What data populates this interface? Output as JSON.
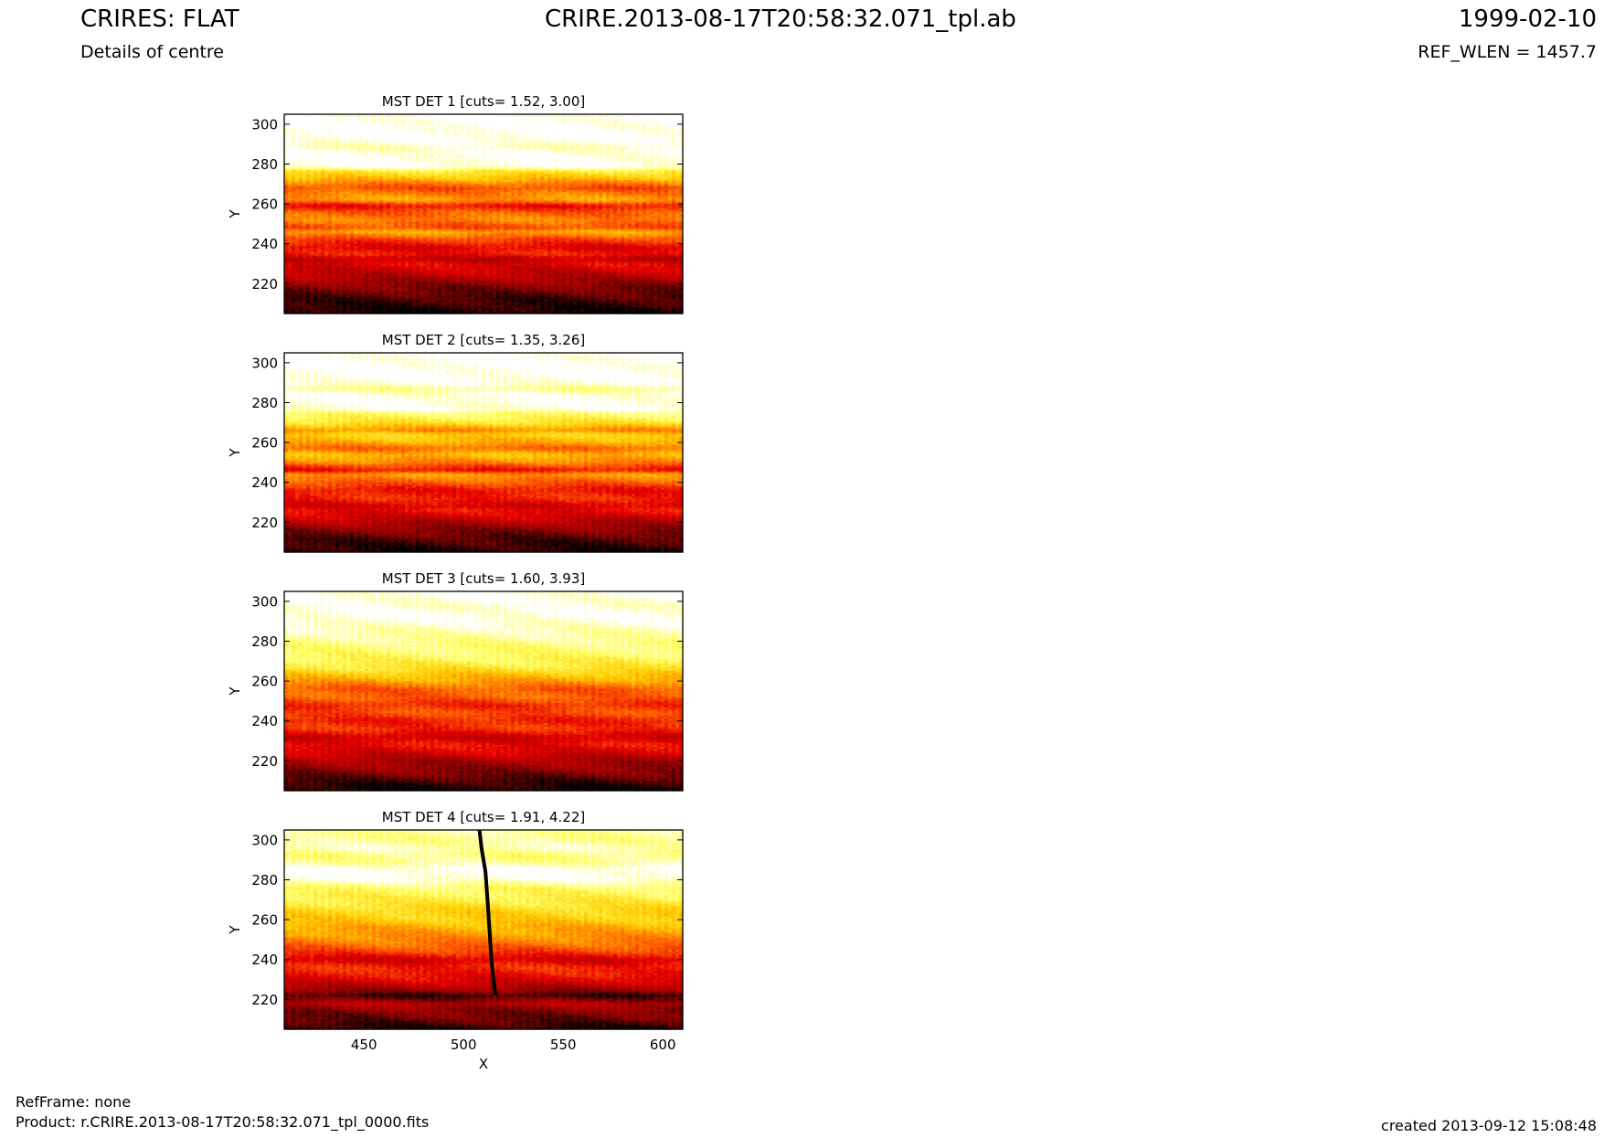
{
  "header": {
    "title": "CRIRES: FLAT",
    "subtitle": "Details of centre",
    "filename": "CRIRE.2013-08-17T20:58:32.071_tpl.ab",
    "date": "1999-02-10",
    "ref_wlen": "REF_WLEN = 1457.7"
  },
  "footer": {
    "refframe": "RefFrame: none",
    "product": "Product: r.CRIRE.2013-08-17T20:58:32.071_tpl_0000.fits",
    "created": "created 2013-09-12 15:08:48"
  },
  "colors": {
    "colormap": "hot",
    "stops": [
      "#000000",
      "#8b0000",
      "#e60000",
      "#ff6600",
      "#ffcc00",
      "#ffff66",
      "#ffffff"
    ]
  },
  "chart_data": [
    {
      "type": "heatmap",
      "title": "MST DET 1 [cuts= 1.52, 3.00]",
      "xlabel": "",
      "ylabel": "Y",
      "xlim": [
        410,
        610
      ],
      "ylim": [
        205,
        305
      ],
      "xticks": [],
      "yticks": [
        220,
        240,
        260,
        280,
        300
      ],
      "profile": [
        [
          205,
          0.02
        ],
        [
          212,
          0.08
        ],
        [
          218,
          0.15
        ],
        [
          222,
          0.22
        ],
        [
          226,
          0.28
        ],
        [
          230,
          0.33
        ],
        [
          232,
          0.25
        ],
        [
          235,
          0.38
        ],
        [
          238,
          0.32
        ],
        [
          242,
          0.44
        ],
        [
          246,
          0.62
        ],
        [
          248,
          0.45
        ],
        [
          252,
          0.55
        ],
        [
          256,
          0.48
        ],
        [
          259,
          0.35
        ],
        [
          262,
          0.6
        ],
        [
          266,
          0.52
        ],
        [
          268,
          0.45
        ],
        [
          272,
          0.62
        ],
        [
          275,
          0.72
        ],
        [
          277,
          0.8
        ],
        [
          278,
          0.97
        ],
        [
          282,
          0.99
        ],
        [
          286,
          0.98
        ],
        [
          288,
          0.93
        ],
        [
          290,
          0.96
        ],
        [
          292,
          1.0
        ],
        [
          305,
          1.0
        ]
      ],
      "features": []
    },
    {
      "type": "heatmap",
      "title": "MST DET 2 [cuts= 1.35, 3.26]",
      "xlabel": "",
      "ylabel": "Y",
      "xlim": [
        410,
        610
      ],
      "ylim": [
        205,
        305
      ],
      "xticks": [],
      "yticks": [
        220,
        240,
        260,
        280,
        300
      ],
      "profile": [
        [
          205,
          0.03
        ],
        [
          212,
          0.1
        ],
        [
          218,
          0.2
        ],
        [
          222,
          0.28
        ],
        [
          226,
          0.36
        ],
        [
          228,
          0.3
        ],
        [
          232,
          0.4
        ],
        [
          236,
          0.36
        ],
        [
          240,
          0.48
        ],
        [
          244,
          0.6
        ],
        [
          246,
          0.35
        ],
        [
          250,
          0.55
        ],
        [
          254,
          0.65
        ],
        [
          257,
          0.5
        ],
        [
          260,
          0.62
        ],
        [
          264,
          0.7
        ],
        [
          266,
          0.55
        ],
        [
          270,
          0.75
        ],
        [
          273,
          0.82
        ],
        [
          275,
          0.86
        ],
        [
          276,
          0.96
        ],
        [
          280,
          0.99
        ],
        [
          284,
          0.97
        ],
        [
          287,
          0.88
        ],
        [
          290,
          0.98
        ],
        [
          294,
          1.0
        ],
        [
          305,
          1.0
        ]
      ],
      "features": []
    },
    {
      "type": "heatmap",
      "title": "MST DET 3 [cuts= 1.60, 3.93]",
      "xlabel": "",
      "ylabel": "Y",
      "xlim": [
        410,
        610
      ],
      "ylim": [
        205,
        305
      ],
      "xticks": [],
      "yticks": [
        220,
        240,
        260,
        280,
        300
      ],
      "profile": [
        [
          205,
          0.02
        ],
        [
          208,
          0.05
        ],
        [
          212,
          0.12
        ],
        [
          216,
          0.18
        ],
        [
          220,
          0.22
        ],
        [
          224,
          0.3
        ],
        [
          228,
          0.36
        ],
        [
          232,
          0.28
        ],
        [
          236,
          0.42
        ],
        [
          240,
          0.38
        ],
        [
          244,
          0.46
        ],
        [
          248,
          0.4
        ],
        [
          252,
          0.5
        ],
        [
          256,
          0.48
        ],
        [
          260,
          0.6
        ],
        [
          263,
          0.66
        ],
        [
          266,
          0.74
        ],
        [
          270,
          0.8
        ],
        [
          274,
          0.84
        ],
        [
          278,
          0.86
        ],
        [
          282,
          0.9
        ],
        [
          286,
          0.93
        ],
        [
          290,
          0.97
        ],
        [
          294,
          0.99
        ],
        [
          297,
          0.96
        ],
        [
          300,
          0.97
        ],
        [
          305,
          0.99
        ]
      ],
      "features": []
    },
    {
      "type": "heatmap",
      "title": "MST DET 4 [cuts= 1.91, 4.22]",
      "xlabel": "X",
      "ylabel": "Y",
      "xlim": [
        410,
        610
      ],
      "ylim": [
        205,
        305
      ],
      "xticks": [
        450,
        500,
        550,
        600
      ],
      "yticks": [
        220,
        240,
        260,
        280,
        300
      ],
      "profile": [
        [
          205,
          0.04
        ],
        [
          210,
          0.12
        ],
        [
          214,
          0.16
        ],
        [
          218,
          0.24
        ],
        [
          222,
          0.06
        ],
        [
          224,
          0.18
        ],
        [
          228,
          0.28
        ],
        [
          232,
          0.36
        ],
        [
          236,
          0.4
        ],
        [
          240,
          0.3
        ],
        [
          244,
          0.44
        ],
        [
          248,
          0.52
        ],
        [
          252,
          0.58
        ],
        [
          256,
          0.62
        ],
        [
          260,
          0.68
        ],
        [
          264,
          0.7
        ],
        [
          268,
          0.76
        ],
        [
          272,
          0.8
        ],
        [
          276,
          0.84
        ],
        [
          280,
          0.97
        ],
        [
          282,
          1.0
        ],
        [
          286,
          0.99
        ],
        [
          288,
          0.9
        ],
        [
          292,
          0.86
        ],
        [
          296,
          0.93
        ],
        [
          300,
          0.88
        ],
        [
          305,
          0.9
        ]
      ],
      "features": [
        {
          "kind": "dark_line",
          "points": [
            [
              508,
              305
            ],
            [
              509,
              296
            ],
            [
              511,
              284
            ],
            [
              512,
              270
            ],
            [
              513,
              255
            ],
            [
              514,
              240
            ],
            [
              515,
              230
            ],
            [
              516,
              222
            ]
          ]
        }
      ]
    }
  ]
}
